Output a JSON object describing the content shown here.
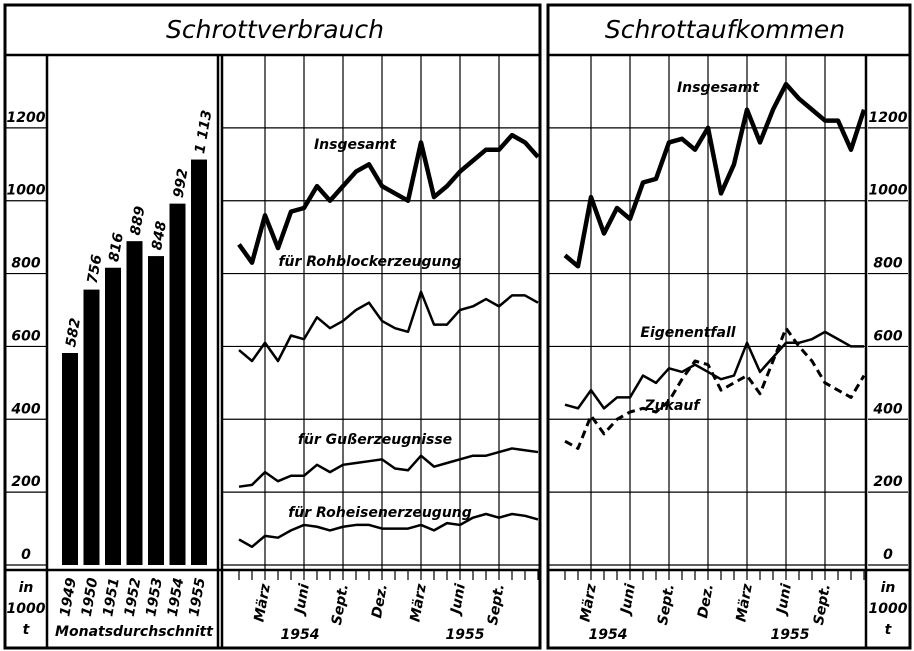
{
  "chart_data": [
    {
      "type": "bar",
      "title": "Schrottverbrauch",
      "xlabel": "Monatsdurchschnitt",
      "ylabel_lines": [
        "in",
        "1000",
        "t"
      ],
      "categories": [
        "1949",
        "1950",
        "1951",
        "1952",
        "1953",
        "1954",
        "1955"
      ],
      "values": [
        582,
        756,
        816,
        889,
        848,
        992,
        1113
      ],
      "value_labels": [
        "582",
        "756",
        "816",
        "889",
        "848",
        "992",
        "1 113"
      ],
      "color": "#000000",
      "ylim": [
        0,
        1400
      ],
      "yticks": [
        0,
        200,
        400,
        600,
        800,
        1000,
        1200
      ]
    },
    {
      "type": "line",
      "categories": [
        null,
        null,
        "März",
        null,
        null,
        "Juni",
        null,
        null,
        "Sept.",
        null,
        null,
        "Dez.",
        null,
        null,
        "März",
        null,
        null,
        "Juni",
        null,
        null,
        "Sept.",
        null,
        null,
        null
      ],
      "x_group_labels": [
        "1954",
        "1955"
      ],
      "ylim": [
        0,
        1400
      ],
      "yticks": [
        0,
        200,
        400,
        600,
        800,
        1000,
        1200
      ],
      "grid": true,
      "series": [
        {
          "name": "Insgesamt",
          "color": "#000000",
          "style": "thick",
          "values": [
            880,
            830,
            960,
            870,
            970,
            980,
            1040,
            1000,
            1040,
            1080,
            1100,
            1040,
            1020,
            1000,
            1160,
            1010,
            1040,
            1080,
            1110,
            1140,
            1140,
            1180,
            1160,
            1120
          ]
        },
        {
          "name": "für Rohblockerzeugung",
          "color": "#000000",
          "style": "thin",
          "values": [
            590,
            560,
            610,
            560,
            630,
            620,
            680,
            650,
            670,
            700,
            720,
            670,
            650,
            640,
            750,
            660,
            660,
            700,
            710,
            730,
            710,
            740,
            740,
            720
          ]
        },
        {
          "name": "für Gußerzeugnisse",
          "color": "#000000",
          "style": "thin",
          "values": [
            215,
            220,
            255,
            230,
            245,
            245,
            275,
            255,
            275,
            280,
            285,
            290,
            265,
            260,
            300,
            270,
            280,
            290,
            300,
            300,
            310,
            320,
            315,
            310
          ]
        },
        {
          "name": "für Roheisenerzeugung",
          "color": "#000000",
          "style": "thin",
          "values": [
            70,
            50,
            80,
            75,
            95,
            110,
            105,
            95,
            105,
            110,
            110,
            100,
            100,
            100,
            110,
            95,
            115,
            110,
            130,
            140,
            130,
            140,
            135,
            125
          ]
        }
      ]
    },
    {
      "type": "line",
      "title": "Schrottaufkommen",
      "ylabel_lines": [
        "in",
        "1000",
        "t"
      ],
      "categories": [
        null,
        null,
        "März",
        null,
        null,
        "Juni",
        null,
        null,
        "Sept.",
        null,
        null,
        "Dez.",
        null,
        null,
        "März",
        null,
        null,
        "Juni",
        null,
        null,
        "Sept.",
        null,
        null,
        null
      ],
      "x_group_labels": [
        "1954",
        "1955"
      ],
      "ylim": [
        0,
        1400
      ],
      "yticks": [
        0,
        200,
        400,
        600,
        800,
        1000,
        1200
      ],
      "grid": true,
      "series": [
        {
          "name": "Insgesamt",
          "color": "#000000",
          "style": "thick",
          "values": [
            850,
            820,
            1010,
            910,
            980,
            950,
            1050,
            1060,
            1160,
            1170,
            1140,
            1200,
            1020,
            1100,
            1250,
            1160,
            1250,
            1320,
            1280,
            1250,
            1220,
            1220,
            1140,
            1250
          ]
        },
        {
          "name": "Eigenentfall",
          "color": "#000000",
          "style": "thin",
          "values": [
            440,
            430,
            480,
            430,
            460,
            460,
            520,
            500,
            540,
            530,
            550,
            530,
            510,
            520,
            610,
            530,
            570,
            610,
            610,
            620,
            640,
            620,
            600,
            600
          ]
        },
        {
          "name": "Zukauf",
          "color": "#000000",
          "style": "dashed",
          "values": [
            340,
            320,
            410,
            360,
            400,
            420,
            430,
            420,
            450,
            510,
            560,
            550,
            480,
            500,
            520,
            470,
            560,
            650,
            600,
            560,
            500,
            480,
            460,
            520
          ]
        }
      ]
    }
  ]
}
